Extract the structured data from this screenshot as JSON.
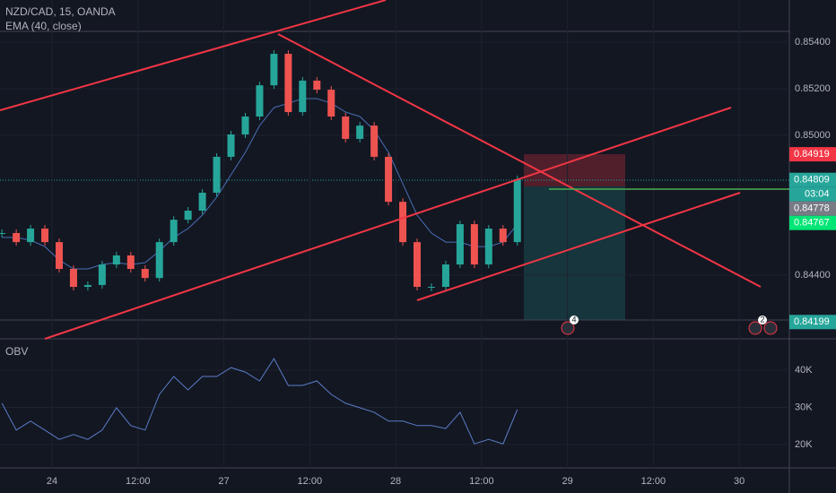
{
  "chart_data": {
    "type": "candlestick",
    "title": "NZD/CAD, 15, OANDA",
    "indicator": "EMA (40, close)",
    "x": [
      -7,
      -5,
      -3,
      -1,
      1,
      3,
      5,
      7,
      9,
      11,
      13,
      15,
      17,
      19,
      21,
      23,
      25,
      27,
      29,
      31,
      33,
      35,
      37,
      39,
      41,
      43,
      45,
      47,
      49,
      51,
      53,
      55,
      57,
      59,
      61,
      63,
      65
    ],
    "xlim": [
      -7.27,
      103.0
    ],
    "xticks": [
      {
        "value": 0,
        "label": "24"
      },
      {
        "value": 12,
        "label": "12:00"
      },
      {
        "value": 24,
        "label": "27"
      },
      {
        "value": 36,
        "label": "12:00"
      },
      {
        "value": 48,
        "label": "28"
      },
      {
        "value": 60,
        "label": "12:00"
      },
      {
        "value": 72,
        "label": "29"
      },
      {
        "value": 84,
        "label": "12:00"
      },
      {
        "value": 96,
        "label": "30"
      }
    ],
    "price": {
      "values": [
        0.84581,
        0.84542,
        0.846,
        0.84542,
        0.84427,
        0.8435,
        0.84358,
        0.84446,
        0.84485,
        0.84427,
        0.84388,
        0.84542,
        0.84638,
        0.84677,
        0.84754,
        0.84908,
        0.85004,
        0.85081,
        0.85215,
        0.8535,
        0.851,
        0.85235,
        0.85196,
        0.85081,
        0.84985,
        0.85042,
        0.84908,
        0.84715,
        0.84542,
        0.8435,
        0.8435,
        0.84446,
        0.84619,
        0.84446,
        0.846,
        0.84542,
        0.84812
      ],
      "up_color": "#26a69a",
      "down_color": "#ef5350",
      "ylim": [
        0.84127,
        0.85581
      ],
      "yticks": [
        {
          "value": 0.854,
          "label": "0.85400"
        },
        {
          "value": 0.852,
          "label": "0.85200"
        },
        {
          "value": 0.85,
          "label": "0.85000"
        },
        {
          "value": 0.844,
          "label": "0.84400"
        }
      ]
    },
    "ema": {
      "color": "#4a6fb5",
      "values": [
        0.84562,
        0.84562,
        0.8455,
        0.84523,
        0.84465,
        0.84427,
        0.84427,
        0.84446,
        0.84454,
        0.84446,
        0.84454,
        0.84504,
        0.84562,
        0.846,
        0.84658,
        0.84735,
        0.84831,
        0.84927,
        0.85042,
        0.85119,
        0.85138,
        0.85158,
        0.85158,
        0.85138,
        0.851,
        0.85081,
        0.85023,
        0.84927,
        0.84792,
        0.84658,
        0.84581,
        0.84542,
        0.84542,
        0.84523,
        0.84523,
        0.84542,
        0.84619
      ]
    },
    "price_labels": [
      {
        "value": 0.84919,
        "label": "0.84919",
        "color": "#f23645"
      },
      {
        "value": 0.84809,
        "label": "0.84809",
        "color": "#26a69a"
      },
      {
        "value": 0.84778,
        "label": "0.84778",
        "color": "#787b86"
      },
      {
        "value": 0.84767,
        "label": "0.84767",
        "color": "#00e676"
      },
      {
        "value": 0.84199,
        "label": "0.84199",
        "color": "#26a69a"
      }
    ],
    "countdown": "03:04",
    "obv": {
      "title": "OBV",
      "color": "#5b7dc8",
      "values": [
        31.1,
        23.9,
        26.3,
        23.9,
        21.4,
        22.7,
        21.4,
        23.9,
        29.9,
        25.1,
        23.9,
        33.5,
        38.3,
        34.7,
        38.3,
        38.3,
        40.7,
        39.5,
        37.1,
        43.1,
        35.9,
        35.9,
        37.1,
        33.5,
        31.1,
        29.9,
        28.7,
        26.3,
        26.3,
        25.1,
        25.1,
        24.3,
        28.7,
        20.2,
        21.4,
        20.2,
        29.4
      ],
      "ylim": [
        13.73,
        48.43
      ],
      "yticks": [
        {
          "value": 40,
          "label": "40K"
        },
        {
          "value": 30,
          "label": "30K"
        },
        {
          "value": 20,
          "label": "20K"
        }
      ]
    },
    "badges": [
      "4",
      "2"
    ]
  }
}
